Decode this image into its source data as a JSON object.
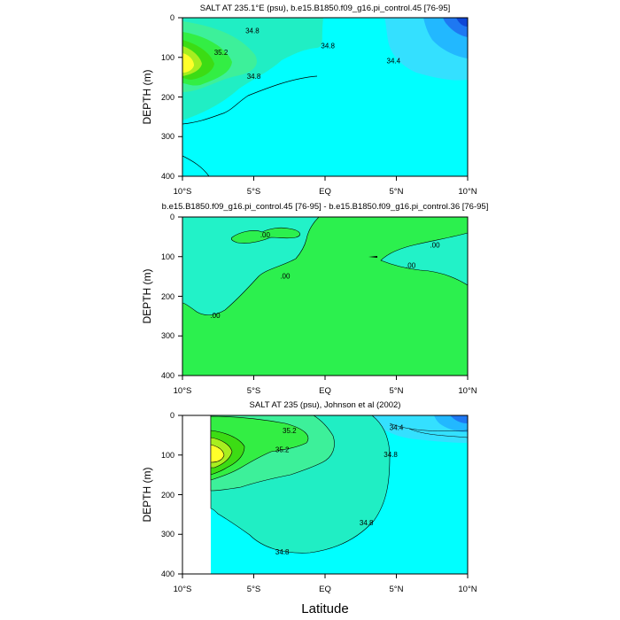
{
  "figure": {
    "xlabel": "Latitude"
  },
  "colors": {
    "cyan_light": "#00ffff",
    "aqua": "#34e0ff",
    "sky": "#22b8ff",
    "blue": "#1e78f2",
    "blue_dark": "#0f46d6",
    "seafoam": "#20eec4",
    "mint": "#3df09a",
    "green": "#33ee44",
    "green_mid": "#3cdc14",
    "yellow_green": "#a8ee20",
    "yellow": "#ffff2a",
    "diff_green": "#2cf04e",
    "diff_aqua": "#22f2c8"
  },
  "chart_data": [
    {
      "type": "contour",
      "title": "SALT AT 235.1°E (psu), b.e15.B1850.f09_g16.pi_control.45 [76-95]",
      "ylabel": "DEPTH (m)",
      "xlim": [
        -10,
        10
      ],
      "ylim": [
        400,
        0
      ],
      "x_tick_labels": [
        "10°S",
        "5°S",
        "EQ",
        "5°N",
        "10°N"
      ],
      "x_ticks": [
        -10,
        -5,
        0,
        5,
        10
      ],
      "y_tick_labels": [
        "0",
        "100",
        "200",
        "300",
        "400"
      ],
      "y_ticks": [
        0,
        100,
        200,
        300,
        400
      ],
      "contour_labels": [
        {
          "text": "34.8",
          "x": -5.1,
          "y": 32
        },
        {
          "text": "34.8",
          "x": 0.2,
          "y": 70
        },
        {
          "text": "35.2",
          "x": -7.3,
          "y": 87
        },
        {
          "text": "34.8",
          "x": -5.0,
          "y": 147
        },
        {
          "text": "34.4",
          "x": 4.8,
          "y": 108
        }
      ]
    },
    {
      "type": "contour",
      "title": "b.e15.B1850.f09_g16.pi_control.45 [76-95] - b.e15.B1850.f09_g16.pi_control.36 [76-95]",
      "ylabel": "DEPTH (m)",
      "xlim": [
        -10,
        10
      ],
      "ylim": [
        400,
        0
      ],
      "x_tick_labels": [
        "10°S",
        "5°S",
        "EQ",
        "5°N",
        "10°N"
      ],
      "x_ticks": [
        -10,
        -5,
        0,
        5,
        10
      ],
      "y_tick_labels": [
        "0",
        "100",
        "200",
        "300",
        "400"
      ],
      "y_ticks": [
        0,
        100,
        200,
        300,
        400
      ],
      "contour_labels": [
        {
          "text": ".00",
          "x": -4.2,
          "y": 45
        },
        {
          "text": ".00",
          "x": 7.7,
          "y": 70
        },
        {
          "text": ".00",
          "x": 6.0,
          "y": 122
        },
        {
          "text": ".00",
          "x": -2.8,
          "y": 149
        },
        {
          "text": ".00",
          "x": -7.7,
          "y": 248
        }
      ]
    },
    {
      "type": "contour",
      "title": "SALT AT 235 (psu), Johnson et al (2002)",
      "ylabel": "DEPTH (m)",
      "xlim": [
        -10,
        10
      ],
      "ylim": [
        400,
        0
      ],
      "x_tick_labels": [
        "10°S",
        "5°S",
        "EQ",
        "5°N",
        "10°N"
      ],
      "x_ticks": [
        -10,
        -5,
        0,
        5,
        10
      ],
      "y_tick_labels": [
        "0",
        "100",
        "200",
        "300",
        "400"
      ],
      "y_ticks": [
        0,
        100,
        200,
        300,
        400
      ],
      "contour_labels": [
        {
          "text": "35.2",
          "x": -2.5,
          "y": 38
        },
        {
          "text": "34.4",
          "x": 5.0,
          "y": 30
        },
        {
          "text": "35.2",
          "x": -3.0,
          "y": 86
        },
        {
          "text": "34.8",
          "x": 4.6,
          "y": 98
        },
        {
          "text": "34.8",
          "x": 2.9,
          "y": 270
        },
        {
          "text": "34.8",
          "x": -3.0,
          "y": 344
        }
      ]
    }
  ]
}
